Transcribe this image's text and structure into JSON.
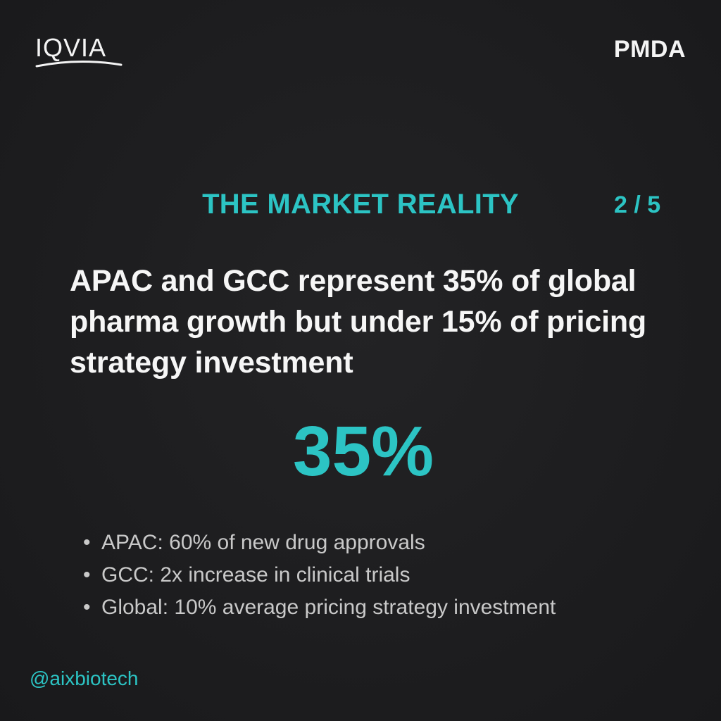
{
  "header": {
    "logo_left": "IQVIA",
    "logo_right": "PMDA"
  },
  "section": {
    "title": "THE MARKET REALITY",
    "page_counter": "2 / 5"
  },
  "headline": "APAC and GCC represent 35% of global pharma growth but under 15% of pricing strategy investment",
  "stat": {
    "value": "35%"
  },
  "bullets": [
    {
      "marker": "•",
      "text": "APAC: 60% of new drug approvals"
    },
    {
      "marker": "•",
      "text": "GCC: 2x increase in clinical trials"
    },
    {
      "marker": "•",
      "text": "Global: 10% average pricing strategy investment"
    }
  ],
  "footer": {
    "handle": "@aixbiotech"
  },
  "colors": {
    "background": "#1e1e20",
    "accent": "#2cc4c4",
    "text_primary": "#f6f6f6",
    "text_secondary": "#c9c9c9"
  }
}
